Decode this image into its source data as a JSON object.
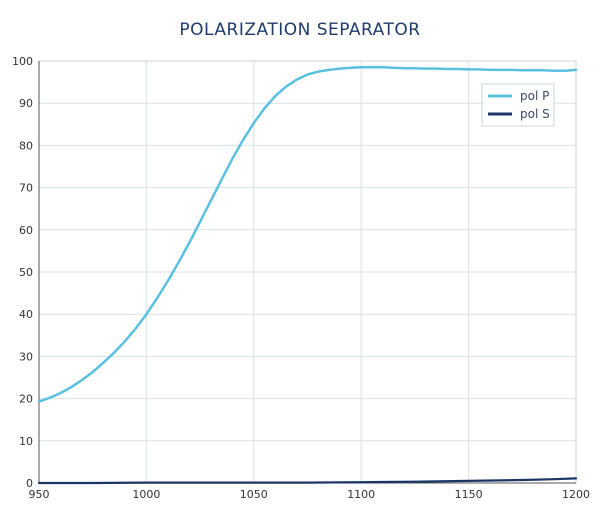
{
  "chart_data": {
    "type": "line",
    "title": "POLARIZATION SEPARATOR",
    "xlabel": "",
    "ylabel": "",
    "xlim": [
      950,
      1200
    ],
    "ylim": [
      0,
      100
    ],
    "xticks": [
      950,
      1000,
      1050,
      1100,
      1150,
      1200
    ],
    "yticks": [
      0,
      10,
      20,
      30,
      40,
      50,
      60,
      70,
      80,
      90,
      100
    ],
    "grid": true,
    "legend_position": "top-right",
    "series": [
      {
        "name": "pol P",
        "color": "#5bc0e0",
        "x": [
          950,
          955,
          960,
          965,
          970,
          975,
          980,
          985,
          990,
          995,
          1000,
          1005,
          1010,
          1015,
          1020,
          1025,
          1030,
          1035,
          1040,
          1045,
          1050,
          1055,
          1060,
          1065,
          1070,
          1075,
          1080,
          1085,
          1090,
          1095,
          1100,
          1105,
          1110,
          1115,
          1120,
          1125,
          1130,
          1135,
          1140,
          1145,
          1150,
          1155,
          1160,
          1165,
          1170,
          1175,
          1180,
          1185,
          1190,
          1195,
          1200
        ],
        "values": [
          19.3,
          20.2,
          21.3,
          22.7,
          24.4,
          26.3,
          28.5,
          30.9,
          33.6,
          36.6,
          40.0,
          43.8,
          47.9,
          52.3,
          57.0,
          61.9,
          66.9,
          71.9,
          76.8,
          81.3,
          85.3,
          88.8,
          91.7,
          93.9,
          95.6,
          96.8,
          97.5,
          97.9,
          98.2,
          98.4,
          98.5,
          98.5,
          98.5,
          98.4,
          98.3,
          98.3,
          98.2,
          98.2,
          98.1,
          98.1,
          98.0,
          98.0,
          97.9,
          97.9,
          97.9,
          97.8,
          97.8,
          97.8,
          97.7,
          97.7,
          97.9
        ]
      },
      {
        "name": "pol S",
        "color": "#1a3566",
        "x": [
          950,
          975,
          1000,
          1025,
          1050,
          1075,
          1100,
          1125,
          1150,
          1175,
          1190,
          1200
        ],
        "values": [
          0.0,
          0.0,
          0.1,
          0.1,
          0.1,
          0.1,
          0.2,
          0.3,
          0.5,
          0.7,
          0.9,
          1.1
        ]
      }
    ]
  }
}
